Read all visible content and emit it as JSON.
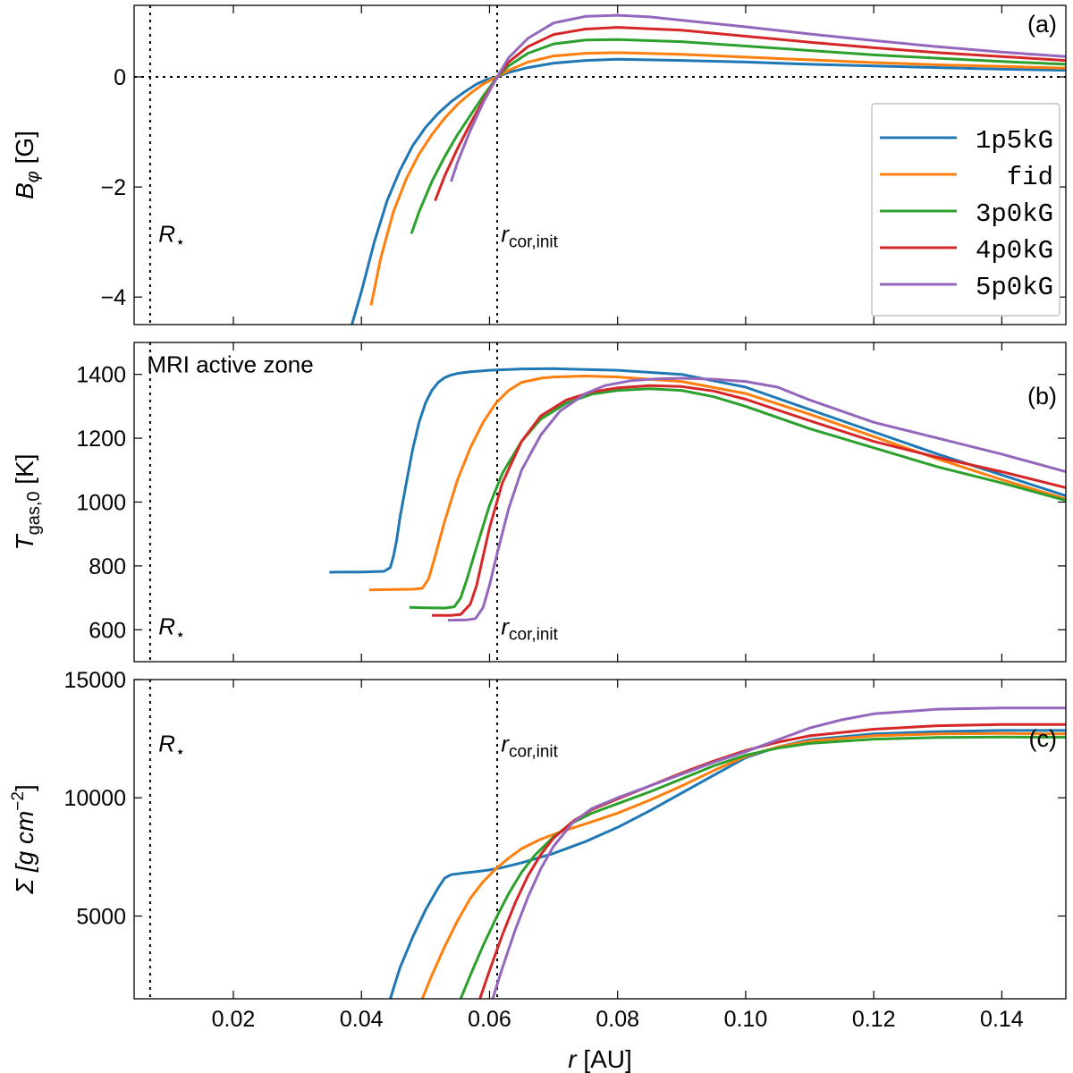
{
  "chart_data": [
    {
      "id": "a",
      "type": "line",
      "panel_label": "(a)",
      "ylabel": "B",
      "ylabel_sub": "φ",
      "ylabel_unit": " [G]",
      "xlim": [
        0.0045,
        0.15
      ],
      "ylim": [
        -4.5,
        1.3
      ],
      "yticks": [
        -4,
        -2,
        0
      ],
      "ytick_labels": [
        "−4",
        "−2",
        "0"
      ],
      "show_xtick_labels": false,
      "hline": 0,
      "vlines": [
        0.007,
        0.0612
      ],
      "annotations": [
        {
          "main": "R",
          "sub": "⋆",
          "italic_main": true,
          "x": 0.0083,
          "y": -2.85
        },
        {
          "main": "r",
          "sub": "cor,init",
          "italic_main": true,
          "x": 0.0618,
          "y": -2.85
        }
      ],
      "series": [
        {
          "name": "1p5kG",
          "color": "#1f77b4",
          "x": [
            0.0385,
            0.04,
            0.042,
            0.044,
            0.046,
            0.048,
            0.05,
            0.052,
            0.054,
            0.056,
            0.058,
            0.0595,
            0.0612,
            0.063,
            0.066,
            0.07,
            0.075,
            0.08,
            0.09,
            0.1,
            0.11,
            0.12,
            0.13,
            0.14,
            0.15
          ],
          "y": [
            -4.5,
            -3.9,
            -3.0,
            -2.25,
            -1.7,
            -1.25,
            -0.92,
            -0.66,
            -0.45,
            -0.28,
            -0.13,
            -0.05,
            0.0,
            0.08,
            0.17,
            0.25,
            0.3,
            0.32,
            0.3,
            0.27,
            0.23,
            0.2,
            0.17,
            0.14,
            0.12
          ]
        },
        {
          "name": "fid",
          "color": "#ff7f0e",
          "x": [
            0.0415,
            0.043,
            0.045,
            0.047,
            0.049,
            0.051,
            0.053,
            0.055,
            0.057,
            0.059,
            0.0612,
            0.063,
            0.066,
            0.07,
            0.075,
            0.08,
            0.09,
            0.1,
            0.11,
            0.12,
            0.13,
            0.14,
            0.15
          ],
          "y": [
            -4.15,
            -3.3,
            -2.45,
            -1.85,
            -1.4,
            -1.05,
            -0.75,
            -0.5,
            -0.3,
            -0.13,
            0.0,
            0.12,
            0.27,
            0.38,
            0.43,
            0.44,
            0.41,
            0.36,
            0.31,
            0.26,
            0.22,
            0.19,
            0.16
          ]
        },
        {
          "name": "3p0kG",
          "color": "#2ca02c",
          "x": [
            0.0478,
            0.049,
            0.051,
            0.053,
            0.055,
            0.057,
            0.059,
            0.0612,
            0.063,
            0.066,
            0.07,
            0.075,
            0.08,
            0.09,
            0.1,
            0.11,
            0.12,
            0.13,
            0.14,
            0.15
          ],
          "y": [
            -2.85,
            -2.45,
            -1.9,
            -1.45,
            -1.05,
            -0.7,
            -0.35,
            0.0,
            0.2,
            0.43,
            0.6,
            0.67,
            0.68,
            0.64,
            0.56,
            0.48,
            0.4,
            0.34,
            0.28,
            0.23
          ]
        },
        {
          "name": "4p0kG",
          "color": "#d62728",
          "x": [
            0.0515,
            0.053,
            0.055,
            0.057,
            0.059,
            0.0612,
            0.063,
            0.066,
            0.07,
            0.075,
            0.08,
            0.09,
            0.1,
            0.11,
            0.12,
            0.13,
            0.14,
            0.15
          ],
          "y": [
            -2.25,
            -1.8,
            -1.3,
            -0.85,
            -0.43,
            0.0,
            0.27,
            0.55,
            0.77,
            0.87,
            0.9,
            0.85,
            0.74,
            0.63,
            0.53,
            0.44,
            0.37,
            0.3
          ]
        },
        {
          "name": "5p0kG",
          "color": "#9467bd",
          "x": [
            0.054,
            0.055,
            0.057,
            0.059,
            0.0612,
            0.063,
            0.066,
            0.07,
            0.075,
            0.08,
            0.085,
            0.09,
            0.1,
            0.11,
            0.12,
            0.13,
            0.14,
            0.15
          ],
          "y": [
            -1.9,
            -1.55,
            -0.97,
            -0.47,
            0.0,
            0.35,
            0.7,
            0.98,
            1.1,
            1.12,
            1.09,
            1.03,
            0.91,
            0.78,
            0.66,
            0.55,
            0.45,
            0.37
          ]
        }
      ],
      "legend": {
        "location": "right",
        "entries": [
          "1p5kG",
          "fid",
          "3p0kG",
          "4p0kG",
          "5p0kG"
        ]
      }
    },
    {
      "id": "b",
      "type": "line",
      "panel_label": "(b)",
      "ylabel": "T",
      "ylabel_sub": "gas,0",
      "ylabel_unit": " [K]",
      "xlim": [
        0.0045,
        0.15
      ],
      "ylim": [
        500,
        1500
      ],
      "yticks": [
        600,
        800,
        1000,
        1200,
        1400
      ],
      "ytick_labels": [
        "600",
        "800",
        "1000",
        "1200",
        "1400"
      ],
      "show_xtick_labels": false,
      "vlines": [
        0.007,
        0.0612
      ],
      "top_text": {
        "text": "MRI active zone",
        "x": 0.0065,
        "y": 1432
      },
      "annotations": [
        {
          "main": "R",
          "sub": "⋆",
          "italic_main": true,
          "x": 0.0083,
          "y": 610
        },
        {
          "main": "r",
          "sub": "cor,init",
          "italic_main": true,
          "x": 0.0618,
          "y": 610
        }
      ],
      "series": [
        {
          "name": "1p5kG",
          "color": "#1f77b4",
          "x": [
            0.035,
            0.037,
            0.04,
            0.042,
            0.0435,
            0.0445,
            0.045,
            0.0455,
            0.046,
            0.047,
            0.048,
            0.049,
            0.05,
            0.051,
            0.052,
            0.053,
            0.054,
            0.055,
            0.057,
            0.06,
            0.065,
            0.07,
            0.08,
            0.09,
            0.1,
            0.11,
            0.12,
            0.13,
            0.14,
            0.15
          ],
          "y": [
            780,
            781,
            781,
            782,
            783,
            795,
            830,
            880,
            950,
            1060,
            1165,
            1250,
            1310,
            1350,
            1375,
            1390,
            1398,
            1403,
            1408,
            1413,
            1417,
            1418,
            1413,
            1400,
            1360,
            1290,
            1220,
            1150,
            1085,
            1020
          ]
        },
        {
          "name": "fid",
          "color": "#ff7f0e",
          "x": [
            0.0412,
            0.045,
            0.048,
            0.0495,
            0.0505,
            0.0515,
            0.053,
            0.055,
            0.057,
            0.059,
            0.061,
            0.063,
            0.065,
            0.068,
            0.07,
            0.075,
            0.08,
            0.09,
            0.1,
            0.11,
            0.12,
            0.13,
            0.14,
            0.15
          ],
          "y": [
            725,
            726,
            727,
            730,
            760,
            830,
            940,
            1070,
            1170,
            1250,
            1310,
            1350,
            1375,
            1388,
            1392,
            1395,
            1392,
            1378,
            1340,
            1275,
            1205,
            1135,
            1070,
            1010
          ]
        },
        {
          "name": "3p0kG",
          "color": "#2ca02c",
          "x": [
            0.0475,
            0.05,
            0.053,
            0.0545,
            0.0555,
            0.0565,
            0.058,
            0.06,
            0.062,
            0.065,
            0.068,
            0.072,
            0.076,
            0.08,
            0.085,
            0.09,
            0.095,
            0.1,
            0.11,
            0.12,
            0.13,
            0.14,
            0.15
          ],
          "y": [
            670,
            669,
            668,
            672,
            700,
            760,
            860,
            990,
            1090,
            1190,
            1260,
            1310,
            1338,
            1350,
            1355,
            1350,
            1330,
            1300,
            1230,
            1170,
            1110,
            1060,
            1005
          ]
        },
        {
          "name": "4p0kG",
          "color": "#d62728",
          "x": [
            0.051,
            0.054,
            0.0555,
            0.057,
            0.058,
            0.059,
            0.06,
            0.062,
            0.065,
            0.068,
            0.072,
            0.076,
            0.08,
            0.085,
            0.09,
            0.095,
            0.1,
            0.11,
            0.12,
            0.13,
            0.14,
            0.15
          ],
          "y": [
            645,
            645,
            648,
            680,
            740,
            830,
            920,
            1060,
            1190,
            1270,
            1320,
            1345,
            1358,
            1365,
            1362,
            1348,
            1322,
            1255,
            1190,
            1140,
            1095,
            1045
          ]
        },
        {
          "name": "5p0kG",
          "color": "#9467bd",
          "x": [
            0.0535,
            0.0565,
            0.0578,
            0.059,
            0.06,
            0.0612,
            0.063,
            0.065,
            0.068,
            0.071,
            0.075,
            0.078,
            0.082,
            0.086,
            0.09,
            0.095,
            0.1,
            0.105,
            0.11,
            0.12,
            0.13,
            0.14,
            0.15
          ],
          "y": [
            630,
            631,
            635,
            670,
            740,
            840,
            980,
            1100,
            1210,
            1285,
            1340,
            1365,
            1380,
            1386,
            1388,
            1385,
            1378,
            1360,
            1320,
            1250,
            1200,
            1150,
            1095
          ]
        }
      ]
    },
    {
      "id": "c",
      "type": "line",
      "panel_label": "(c)",
      "ylabel": "Σ",
      "ylabel_unit": " [g cm",
      "ylabel_sup": "−2",
      "ylabel_end": "]",
      "xlim": [
        0.0045,
        0.15
      ],
      "ylim": [
        1500,
        15000
      ],
      "yticks": [
        5000,
        10000,
        15000
      ],
      "ytick_labels": [
        "5000",
        "10000",
        "15000"
      ],
      "xticks": [
        0.02,
        0.04,
        0.06,
        0.08,
        0.1,
        0.12,
        0.14
      ],
      "xtick_labels": [
        "0.02",
        "0.04",
        "0.06",
        "0.08",
        "0.10",
        "0.12",
        "0.14"
      ],
      "show_xtick_labels": true,
      "xlabel": "r",
      "xlabel_unit": " [AU]",
      "vlines": [
        0.007,
        0.0612
      ],
      "annotations": [
        {
          "main": "R",
          "sub": "⋆",
          "italic_main": true,
          "x": 0.0083,
          "y": 12300
        },
        {
          "main": "r",
          "sub": "cor,init",
          "italic_main": true,
          "x": 0.0618,
          "y": 12300
        }
      ],
      "series": [
        {
          "name": "1p5kG",
          "color": "#1f77b4",
          "x": [
            0.0445,
            0.046,
            0.048,
            0.05,
            0.052,
            0.053,
            0.054,
            0.056,
            0.058,
            0.06,
            0.062,
            0.065,
            0.07,
            0.075,
            0.08,
            0.085,
            0.09,
            0.095,
            0.1,
            0.105,
            0.11,
            0.12,
            0.13,
            0.14,
            0.15
          ],
          "y": [
            1500,
            2800,
            4100,
            5250,
            6200,
            6600,
            6750,
            6820,
            6880,
            6950,
            7050,
            7250,
            7650,
            8150,
            8750,
            9450,
            10200,
            10950,
            11700,
            12150,
            12450,
            12700,
            12800,
            12850,
            12850
          ]
        },
        {
          "name": "fid",
          "color": "#ff7f0e",
          "x": [
            0.0495,
            0.051,
            0.053,
            0.055,
            0.057,
            0.059,
            0.061,
            0.063,
            0.065,
            0.068,
            0.071,
            0.075,
            0.08,
            0.085,
            0.09,
            0.095,
            0.1,
            0.105,
            0.11,
            0.12,
            0.13,
            0.14,
            0.15
          ],
          "y": [
            1500,
            2500,
            3700,
            4800,
            5750,
            6450,
            7000,
            7450,
            7850,
            8250,
            8550,
            8900,
            9350,
            9900,
            10500,
            11150,
            11750,
            12150,
            12400,
            12620,
            12700,
            12720,
            12700
          ]
        },
        {
          "name": "3p0kG",
          "color": "#2ca02c",
          "x": [
            0.0555,
            0.057,
            0.059,
            0.061,
            0.063,
            0.065,
            0.067,
            0.07,
            0.073,
            0.076,
            0.08,
            0.085,
            0.09,
            0.095,
            0.1,
            0.105,
            0.11,
            0.12,
            0.13,
            0.14,
            0.15
          ],
          "y": [
            1500,
            2500,
            3750,
            4900,
            5950,
            6850,
            7550,
            8350,
            8950,
            9350,
            9750,
            10250,
            10800,
            11350,
            11800,
            12100,
            12300,
            12480,
            12550,
            12570,
            12560
          ]
        },
        {
          "name": "4p0kG",
          "color": "#d62728",
          "x": [
            0.0585,
            0.06,
            0.062,
            0.064,
            0.066,
            0.068,
            0.07,
            0.073,
            0.076,
            0.08,
            0.085,
            0.09,
            0.095,
            0.1,
            0.105,
            0.11,
            0.12,
            0.13,
            0.14,
            0.15
          ],
          "y": [
            1500,
            2700,
            4200,
            5550,
            6700,
            7600,
            8300,
            9000,
            9500,
            9950,
            10500,
            11050,
            11550,
            12000,
            12350,
            12620,
            12900,
            13050,
            13100,
            13100
          ]
        },
        {
          "name": "5p0kG",
          "color": "#9467bd",
          "x": [
            0.0605,
            0.062,
            0.064,
            0.066,
            0.068,
            0.07,
            0.073,
            0.076,
            0.08,
            0.085,
            0.09,
            0.095,
            0.1,
            0.105,
            0.11,
            0.115,
            0.12,
            0.13,
            0.14,
            0.15
          ],
          "y": [
            1500,
            2800,
            4400,
            5800,
            7000,
            7950,
            8950,
            9550,
            10000,
            10500,
            11000,
            11500,
            11950,
            12450,
            12950,
            13300,
            13550,
            13750,
            13800,
            13800
          ]
        }
      ]
    }
  ]
}
